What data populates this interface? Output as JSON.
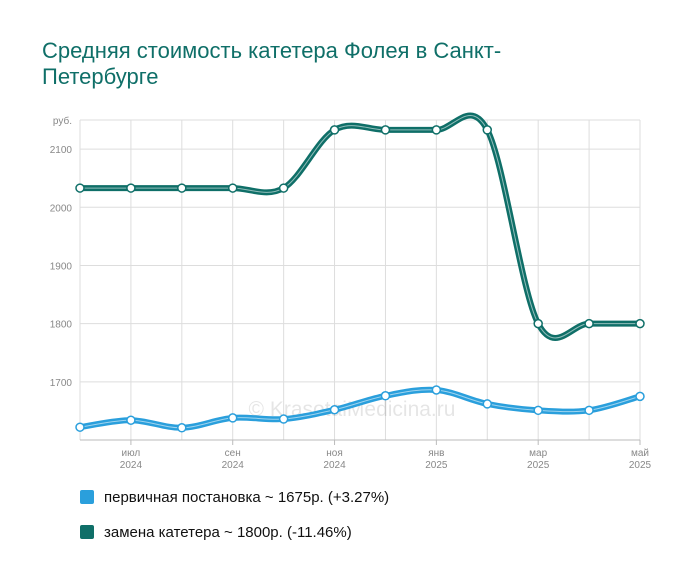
{
  "title": "Средняя стоимость катетера Фолея в Санкт-Петербурге",
  "watermark": "© KrasotaiMedicina.ru",
  "legend": [
    {
      "label": "первичная постановка ~ 1675р. (+3.27%)",
      "color": "#2a9fdc"
    },
    {
      "label": "замена катетера ~ 1800р. (-11.46%)",
      "color": "#0f6f68"
    }
  ],
  "chart_data": {
    "type": "line",
    "y_unit_label": "руб.",
    "ylim": [
      1600,
      2150
    ],
    "yticks": [
      "1700",
      "1800",
      "1900",
      "2000",
      "2100"
    ],
    "x_labels": [
      {
        "index": 1,
        "month": "июл",
        "year": "2024"
      },
      {
        "index": 3,
        "month": "сен",
        "year": "2024"
      },
      {
        "index": 5,
        "month": "ноя",
        "year": "2024"
      },
      {
        "index": 7,
        "month": "янв",
        "year": "2025"
      },
      {
        "index": 9,
        "month": "мар",
        "year": "2025"
      },
      {
        "index": 11,
        "month": "май",
        "year": "2025"
      }
    ],
    "series": [
      {
        "name": "первичная постановка",
        "color": "#2a9fdc",
        "values": [
          1622,
          1634,
          1621,
          1638,
          1636,
          1652,
          1676,
          1686,
          1662,
          1651,
          1651,
          1675
        ]
      },
      {
        "name": "замена катетера",
        "color": "#0f6f68",
        "values": [
          2033,
          2033,
          2033,
          2033,
          2033,
          2133,
          2133,
          2133,
          2133,
          1800,
          1800,
          1800
        ]
      }
    ],
    "grid": true
  }
}
